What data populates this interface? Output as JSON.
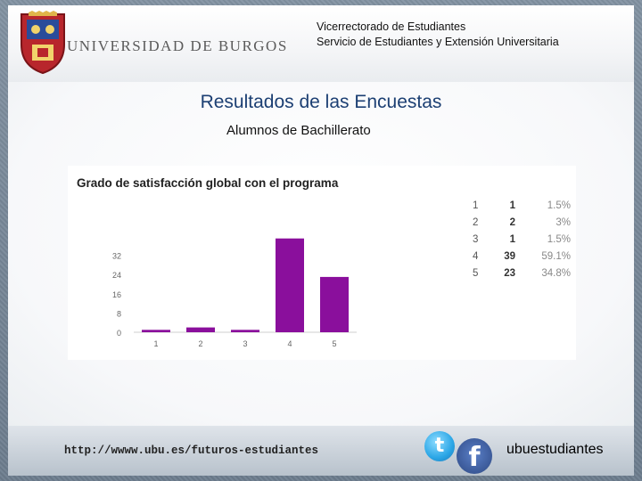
{
  "header": {
    "university": "UNIVERSIDAD DE BURGOS",
    "org_line1": "Vicerrectorado de Estudiantes",
    "org_line2": "Servicio de Estudiantes y Extensión Universitaria"
  },
  "page": {
    "title": "Resultados de las Encuestas",
    "subtitle": "Alumnos de Bachillerato"
  },
  "chart_data": {
    "type": "bar",
    "title": "Grado de satisfacción global con el programa",
    "categories": [
      "1",
      "2",
      "3",
      "4",
      "5"
    ],
    "values": [
      1,
      2,
      1,
      39,
      23
    ],
    "percentages": [
      "1.5%",
      "3%",
      "1.5%",
      "59.1%",
      "34.8%"
    ],
    "xlabel": "",
    "ylabel": "",
    "ylim": [
      0,
      40
    ],
    "yticks": [
      "0",
      "8",
      "16",
      "24",
      "32"
    ],
    "ytick_values": [
      0,
      8,
      16,
      24,
      32
    ],
    "bar_color": "#8a0f9c",
    "grid": false
  },
  "footer": {
    "url": "http://wwww.ubu.es/futuros-estudiantes",
    "social_handle": "ubuestudiantes",
    "icons": [
      "twitter-icon",
      "facebook-icon"
    ]
  }
}
